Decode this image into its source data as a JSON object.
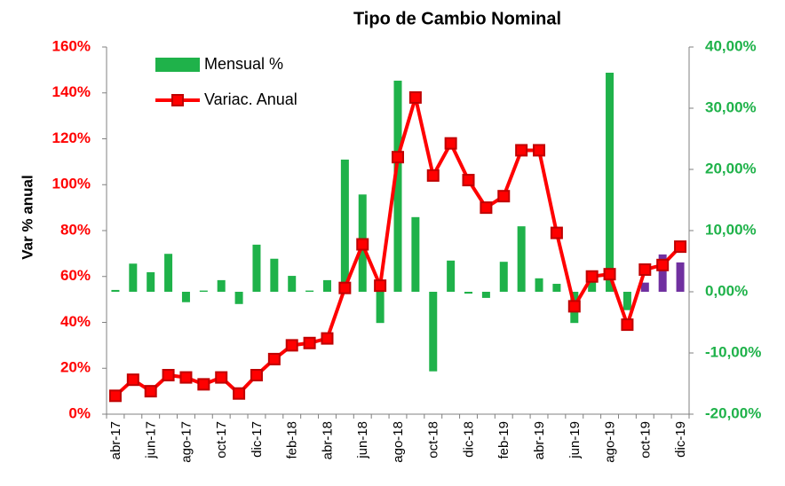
{
  "chart_data": {
    "type": "bar-line",
    "title": "Tipo de Cambio Nominal",
    "ylabel": "Var  % anual",
    "categories": [
      "abr-17",
      null,
      "jun-17",
      null,
      "ago-17",
      null,
      "oct-17",
      null,
      "dic-17",
      null,
      "feb-18",
      null,
      "abr-18",
      null,
      "jun-18",
      null,
      "ago-18",
      null,
      "oct-18",
      null,
      "dic-18",
      null,
      "feb-19",
      null,
      "abr-19",
      null,
      "jun-19",
      null,
      "ago-19",
      null,
      "oct-19",
      null,
      "dic-19"
    ],
    "ylim": [
      0,
      160
    ],
    "yticks": [
      {
        "value": 0,
        "label": "0%"
      },
      {
        "value": 20,
        "label": "20%"
      },
      {
        "value": 40,
        "label": "40%"
      },
      {
        "value": 60,
        "label": "60%"
      },
      {
        "value": 80,
        "label": "80%"
      },
      {
        "value": 100,
        "label": "100%"
      },
      {
        "value": 120,
        "label": "120%"
      },
      {
        "value": 140,
        "label": "140%"
      },
      {
        "value": 160,
        "label": "160%"
      }
    ],
    "y2lim": [
      -20,
      40
    ],
    "y2ticks": [
      {
        "value": -20,
        "label": "-20,00%"
      },
      {
        "value": -10,
        "label": "-10,00%"
      },
      {
        "value": 0,
        "label": "0,00%"
      },
      {
        "value": 10,
        "label": "10,00%"
      },
      {
        "value": 20,
        "label": "20,00%"
      },
      {
        "value": 30,
        "label": "30,00%"
      },
      {
        "value": 40,
        "label": "40,00%"
      }
    ],
    "legend": "upper left",
    "series": [
      {
        "name": "Mensual %",
        "type": "bar",
        "axis": "y2",
        "color": "#1fb24a",
        "values": [
          0.3,
          4.6,
          3.2,
          6.2,
          -1.7,
          0.2,
          1.9,
          -2.0,
          7.7,
          5.4,
          2.6,
          0.2,
          1.9,
          21.6,
          15.9,
          -5.1,
          34.5,
          12.2,
          -13.0,
          5.1,
          -0.3,
          -1.0,
          4.9,
          10.7,
          2.2,
          1.3,
          -5.1,
          1.6,
          35.8,
          -3.0,
          1.5,
          6.1,
          4.8
        ],
        "colors": [
          "#1fb24a",
          "#1fb24a",
          "#1fb24a",
          "#1fb24a",
          "#1fb24a",
          "#1fb24a",
          "#1fb24a",
          "#1fb24a",
          "#1fb24a",
          "#1fb24a",
          "#1fb24a",
          "#1fb24a",
          "#1fb24a",
          "#1fb24a",
          "#1fb24a",
          "#1fb24a",
          "#1fb24a",
          "#1fb24a",
          "#1fb24a",
          "#1fb24a",
          "#1fb24a",
          "#1fb24a",
          "#1fb24a",
          "#1fb24a",
          "#1fb24a",
          "#1fb24a",
          "#1fb24a",
          "#1fb24a",
          "#1fb24a",
          "#1fb24a",
          "#7030a0",
          "#7030a0",
          "#7030a0"
        ]
      },
      {
        "name": "Variac. Anual",
        "type": "line",
        "axis": "y",
        "color": "#ff0000",
        "values": [
          8,
          15,
          10,
          17,
          16,
          13,
          16,
          9,
          17,
          24,
          30,
          31,
          33,
          55,
          74,
          56,
          112,
          138,
          104,
          118,
          102,
          90,
          95,
          115,
          115,
          79,
          47,
          60,
          61,
          39,
          63,
          65,
          73
        ]
      }
    ]
  }
}
